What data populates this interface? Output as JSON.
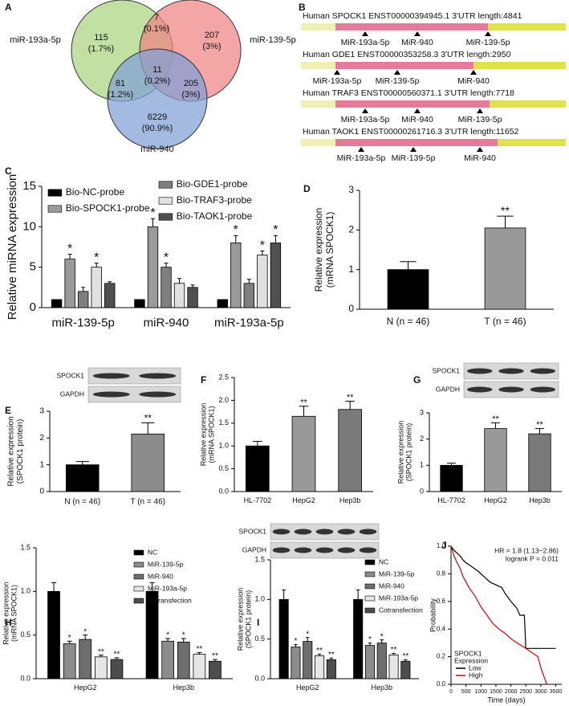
{
  "chart_data": [
    {
      "type": "venn",
      "label": "A",
      "sets": [
        {
          "name": "miR-193a-5p",
          "color": "#a9d47e"
        },
        {
          "name": "miR-139-5p",
          "color": "#f08282"
        },
        {
          "name": "miR-940",
          "color": "#7fa0d6"
        }
      ],
      "regions": [
        {
          "count": 115,
          "percent": "(1.7%)"
        },
        {
          "count": 7,
          "percent": "(0.1%)"
        },
        {
          "count": 207,
          "percent": "(3%)"
        },
        {
          "count": 11,
          "percent": "(0.2%)"
        },
        {
          "count": 81,
          "percent": "(1.2%)"
        },
        {
          "count": 205,
          "percent": "(3%)"
        },
        {
          "count": 6229,
          "percent": "(90.9%)"
        }
      ]
    },
    {
      "type": "utr",
      "label": "B",
      "transcripts": [
        {
          "title": "Human SPOCK1 ENST00000394945.1 3'UTR length:4841",
          "sites": [
            "MiR-193a-5p",
            "MiR-940",
            "MiR-139-5p"
          ]
        },
        {
          "title": "Human GDE1 ENST00000353258.3 3'UTR length:2950",
          "sites": [
            "MiR-193a-5p",
            "MiR-139-5p",
            "MiR-940"
          ]
        },
        {
          "title": "Human TRAF3 ENST00000560371.1 3'UTR length:7718",
          "sites": [
            "MiR-193a-5p",
            "MiR-940",
            "MiR-139-5p"
          ]
        },
        {
          "title": "Human TAOK1 ENST00000261716.3 3'UTR length:11652",
          "sites": [
            "MiR-193a-5p",
            "MiR-139-5p",
            "MiR-940"
          ]
        }
      ]
    },
    {
      "type": "grouped_bar",
      "label": "C",
      "ylabel": [
        "Relative miRNA expression"
      ],
      "categories": [
        "miR-139-5p",
        "miR-940",
        "miR-193a-5p"
      ],
      "series": [
        {
          "name": "Bio-NC-probe",
          "color": "#000000",
          "values": [
            1,
            1,
            1
          ]
        },
        {
          "name": "Bio-SPOCK1-probe",
          "color": "#9a9a9a",
          "values": [
            6,
            10,
            8
          ],
          "errors": [
            0.6,
            1,
            0.9
          ],
          "sig": [
            "*",
            "*",
            "*"
          ]
        },
        {
          "name": "Bio-GDE1-probe",
          "color": "#7f7f7f",
          "values": [
            2,
            5,
            3
          ],
          "errors": [
            0.5,
            0.5,
            0.5
          ],
          "sig": [
            null,
            "*",
            null
          ]
        },
        {
          "name": "Bio-TRAF3-probe",
          "color": "#e0e0e0",
          "values": [
            5,
            3,
            6.5
          ],
          "errors": [
            0.5,
            0.6,
            0.5
          ],
          "sig": [
            "*",
            null,
            "*"
          ]
        },
        {
          "name": "Bio-TAOK1-probe",
          "color": "#505050",
          "values": [
            3,
            2.5,
            8
          ],
          "errors": [
            0.2,
            0.3,
            0.9
          ],
          "sig": [
            null,
            null,
            "*"
          ]
        }
      ],
      "ylim": [
        0,
        15
      ],
      "yticks": [
        0,
        5,
        10,
        15
      ]
    },
    {
      "type": "bar",
      "label": "D",
      "ylabel": [
        "Relative expression",
        "(mRNA SPOCK1)"
      ],
      "categories": [
        "N (n = 46)",
        "T (n = 46)"
      ],
      "values": [
        1,
        2.05
      ],
      "errors": [
        0.2,
        0.3
      ],
      "colors": [
        "#000000",
        "#999999"
      ],
      "sig": [
        null,
        "**"
      ],
      "ylim": [
        0,
        3
      ],
      "yticks": [
        0,
        1,
        2,
        3
      ]
    },
    {
      "type": "bar",
      "label": "E",
      "ylabel": [
        "Relative expression",
        "(SPOCK1 protein)"
      ],
      "blot": [
        "SPOCK1",
        "GAPDH"
      ],
      "categories": [
        "N (n = 46)",
        "T (n = 46)"
      ],
      "values": [
        1,
        2.15
      ],
      "errors": [
        0.12,
        0.42
      ],
      "colors": [
        "#000000",
        "#8c8c8c"
      ],
      "sig": [
        null,
        "**"
      ],
      "ylim": [
        0,
        3
      ],
      "yticks": [
        0,
        1,
        2,
        3
      ]
    },
    {
      "type": "bar",
      "label": "F",
      "ylabel": [
        "Relative expression",
        "(mRNA SPOCK1)"
      ],
      "categories": [
        "HL-7702",
        "HepG2",
        "Hep3b"
      ],
      "values": [
        1,
        1.65,
        1.8
      ],
      "errors": [
        0.1,
        0.22,
        0.18
      ],
      "colors": [
        "#000000",
        "#999999",
        "#7a7a7a"
      ],
      "sig": [
        null,
        "**",
        "**"
      ],
      "ylim": [
        0,
        2.5
      ],
      "yticks": [
        {
          "value": 0,
          "label": "0.0"
        },
        {
          "value": 0.5,
          "label": "0.5"
        },
        {
          "value": 1,
          "label": "1.0"
        },
        {
          "value": 1.5,
          "label": "1.5"
        },
        {
          "value": 2,
          "label": "2.0"
        },
        {
          "value": 2.5,
          "label": "2.5"
        }
      ]
    },
    {
      "type": "bar",
      "label": "G",
      "ylabel": [
        "Relative expression",
        "(SPOCK1 protein)"
      ],
      "blot": [
        "SPOCK1",
        "GAPDH"
      ],
      "categories": [
        "HL-7702",
        "HepG2",
        "Hep3b"
      ],
      "values": [
        1,
        2.4,
        2.2
      ],
      "errors": [
        0.08,
        0.22,
        0.2
      ],
      "colors": [
        "#000000",
        "#999999",
        "#7a7a7a"
      ],
      "sig": [
        null,
        "**",
        "**"
      ],
      "ylim": [
        0,
        3
      ],
      "yticks": [
        0,
        1,
        2,
        3
      ]
    },
    {
      "type": "grouped_bar",
      "label": "H",
      "ylabel": [
        "Relative expression",
        "(mRNA SPOCK1)"
      ],
      "categories": [
        "HepG2",
        "Hep3b"
      ],
      "series": [
        {
          "name": "NC",
          "color": "#000000",
          "values": [
            1,
            1
          ],
          "errors": [
            0.1,
            0.1
          ]
        },
        {
          "name": "MiR-139-5p",
          "color": "#8c8c8c",
          "values": [
            0.4,
            0.43
          ],
          "errors": [
            0.03,
            0.03
          ],
          "sig": [
            "*",
            "*"
          ]
        },
        {
          "name": "MiR-940",
          "color": "#6e6e6e",
          "values": [
            0.45,
            0.42
          ],
          "errors": [
            0.05,
            0.04
          ],
          "sig": [
            "*",
            "*"
          ]
        },
        {
          "name": "MiR-193a-5p",
          "color": "#e6e6e6",
          "values": [
            0.25,
            0.28
          ],
          "errors": [
            0.02,
            0.02
          ],
          "sig": [
            "**",
            "**"
          ]
        },
        {
          "name": "Cotransfection",
          "color": "#4d4d4d",
          "values": [
            0.22,
            0.2
          ],
          "errors": [
            0.02,
            0.02
          ],
          "sig": [
            "**",
            "**"
          ]
        }
      ],
      "ylim": [
        0,
        1.5
      ],
      "yticks": [
        {
          "value": 0,
          "label": "0.0"
        },
        {
          "value": 0.5,
          "label": "0.5"
        },
        {
          "value": 1,
          "label": "1.0"
        },
        {
          "value": 1.5,
          "label": "1.5"
        }
      ]
    },
    {
      "type": "grouped_bar",
      "label": "I",
      "ylabel": [
        "Relative expression",
        "(SPOCK1 protein)"
      ],
      "blot": [
        "SPOCK1",
        "GAPDH"
      ],
      "categories": [
        "HepG2",
        "Hep3b"
      ],
      "series": [
        {
          "name": "NC",
          "color": "#000000",
          "values": [
            1,
            1
          ],
          "errors": [
            0.12,
            0.12
          ]
        },
        {
          "name": "MiR-139-5p",
          "color": "#8c8c8c",
          "values": [
            0.4,
            0.42
          ],
          "errors": [
            0.03,
            0.03
          ],
          "sig": [
            "*",
            "*"
          ]
        },
        {
          "name": "MiR-940",
          "color": "#6e6e6e",
          "values": [
            0.47,
            0.45
          ],
          "errors": [
            0.05,
            0.04
          ],
          "sig": [
            "*",
            "*"
          ]
        },
        {
          "name": "MiR-193a-5p",
          "color": "#e6e6e6",
          "values": [
            0.29,
            0.3
          ],
          "errors": [
            0.02,
            0.02
          ],
          "sig": [
            "**",
            "**"
          ]
        },
        {
          "name": "Cotransfection",
          "color": "#4d4d4d",
          "values": [
            0.24,
            0.22
          ],
          "errors": [
            0.02,
            0.02
          ],
          "sig": [
            "**",
            "**"
          ]
        }
      ],
      "ylim": [
        0,
        1.5
      ],
      "yticks": [
        {
          "value": 0,
          "label": "0.0"
        },
        {
          "value": 0.5,
          "label": "0.5"
        },
        {
          "value": 1,
          "label": "1.0"
        },
        {
          "value": 1.5,
          "label": "1.5"
        }
      ]
    },
    {
      "type": "survival",
      "label": "J",
      "xlabel": "Time (days)",
      "ylabel": [
        "Probability"
      ],
      "annotations": [
        "HR = 1.8 (1.13−2.86)",
        "logrank P = 0.011"
      ],
      "legend_title": [
        "SPOCK1",
        "Expression"
      ],
      "series": [
        {
          "name": "Low",
          "color": "#000000",
          "x": [
            0,
            100,
            200,
            300,
            400,
            500,
            700,
            900,
            1100,
            1300,
            1500,
            1700,
            1800,
            1900,
            2000,
            2200,
            2300,
            2450,
            2500,
            3500
          ],
          "values": [
            1,
            0.97,
            0.95,
            0.93,
            0.9,
            0.88,
            0.85,
            0.82,
            0.78,
            0.74,
            0.72,
            0.7,
            0.66,
            0.63,
            0.6,
            0.55,
            0.5,
            0.5,
            0.26,
            0.26
          ]
        },
        {
          "name": "High",
          "color": "#e00000",
          "x": [
            0,
            100,
            200,
            300,
            400,
            500,
            600,
            800,
            1000,
            1200,
            1400,
            1600,
            1800,
            2000,
            2200,
            2500,
            2900,
            3000,
            3100,
            3200
          ],
          "values": [
            1,
            0.93,
            0.88,
            0.84,
            0.78,
            0.74,
            0.7,
            0.64,
            0.56,
            0.5,
            0.44,
            0.4,
            0.37,
            0.33,
            0.3,
            0.26,
            0.2,
            0.12,
            0.06,
            0
          ]
        }
      ],
      "xlim": [
        0,
        3700
      ],
      "xticks": [
        0,
        500,
        1000,
        1500,
        2000,
        2500,
        3000,
        3500
      ],
      "ylim": [
        0,
        1
      ],
      "yticks": [
        {
          "value": 0,
          "label": "0.0"
        },
        {
          "value": 0.2,
          "label": "0.2"
        },
        {
          "value": 0.4,
          "label": "0.4"
        },
        {
          "value": 0.6,
          "label": "0.6"
        },
        {
          "value": 0.8,
          "label": "0.8"
        },
        {
          "value": 1,
          "label": "1.0"
        }
      ]
    }
  ]
}
